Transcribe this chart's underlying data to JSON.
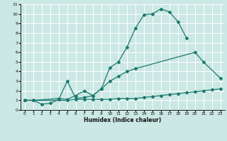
{
  "xlabel": "Humidex (Indice chaleur)",
  "bg_color": "#cce8e4",
  "grid_color": "#ffffff",
  "line_color": "#1a7a6e",
  "xlim": [
    -0.5,
    23.5
  ],
  "ylim": [
    0,
    11
  ],
  "xticks": [
    0,
    1,
    2,
    3,
    4,
    5,
    6,
    7,
    8,
    9,
    10,
    11,
    12,
    13,
    14,
    15,
    16,
    17,
    18,
    19,
    20,
    21,
    22,
    23
  ],
  "yticks": [
    0,
    1,
    2,
    3,
    4,
    5,
    6,
    7,
    8,
    9,
    10,
    11
  ],
  "line1_x": [
    0,
    1,
    2,
    3,
    4,
    5,
    6,
    7,
    8,
    9,
    10,
    11,
    12,
    13,
    14,
    15,
    16,
    17,
    18,
    19
  ],
  "line1_y": [
    1.0,
    1.0,
    0.6,
    0.7,
    1.1,
    3.0,
    1.2,
    1.3,
    1.5,
    2.2,
    4.4,
    5.0,
    6.5,
    8.5,
    9.9,
    10.0,
    10.5,
    10.2,
    9.2,
    7.5
  ],
  "line2_x": [
    0,
    1,
    4,
    5,
    6,
    7,
    8,
    9,
    10,
    11,
    12,
    13,
    20,
    21,
    23
  ],
  "line2_y": [
    1.0,
    1.0,
    1.2,
    1.1,
    1.5,
    2.0,
    1.5,
    2.2,
    3.0,
    3.5,
    4.0,
    4.3,
    6.0,
    5.0,
    3.3
  ],
  "line3_x": [
    0,
    5,
    6,
    7,
    8,
    9,
    10,
    11,
    12,
    13,
    14,
    15,
    16,
    17,
    18,
    19,
    20,
    21,
    22,
    23
  ],
  "line3_y": [
    1.0,
    1.0,
    1.1,
    1.1,
    1.1,
    1.1,
    1.1,
    1.2,
    1.2,
    1.2,
    1.3,
    1.4,
    1.5,
    1.6,
    1.7,
    1.8,
    1.9,
    2.0,
    2.1,
    2.2
  ]
}
